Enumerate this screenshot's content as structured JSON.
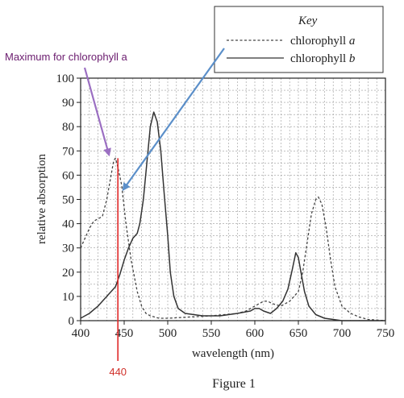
{
  "chart_data": {
    "type": "line",
    "xlabel": "wavelength (nm)",
    "ylabel": "relative absorption",
    "xlim": [
      400,
      750
    ],
    "ylim": [
      0,
      100
    ],
    "x_ticks": [
      400,
      450,
      500,
      550,
      600,
      650,
      700,
      750
    ],
    "y_ticks": [
      0,
      10,
      20,
      30,
      40,
      50,
      60,
      70,
      80,
      90,
      100
    ],
    "grid": true,
    "caption": "Figure 1",
    "legend": {
      "title": "Key",
      "position": "top-right",
      "entries": [
        {
          "prefix": "chlorophyll ",
          "italic": "a",
          "style": "dashed"
        },
        {
          "prefix": "chlorophyll ",
          "italic": "b",
          "style": "solid"
        }
      ]
    },
    "series": [
      {
        "name": "chlorophyll a",
        "style": "dashed",
        "color": "#444444",
        "points": [
          [
            400,
            30
          ],
          [
            405,
            34
          ],
          [
            410,
            38
          ],
          [
            415,
            41
          ],
          [
            420,
            42
          ],
          [
            425,
            43
          ],
          [
            430,
            50
          ],
          [
            435,
            60
          ],
          [
            438,
            66
          ],
          [
            440,
            67
          ],
          [
            443,
            63
          ],
          [
            447,
            56
          ],
          [
            452,
            40
          ],
          [
            458,
            25
          ],
          [
            465,
            12
          ],
          [
            470,
            6
          ],
          [
            475,
            3
          ],
          [
            480,
            2
          ],
          [
            485,
            1.5
          ],
          [
            490,
            1
          ],
          [
            500,
            1
          ],
          [
            550,
            2
          ],
          [
            580,
            3
          ],
          [
            590,
            4
          ],
          [
            600,
            6
          ],
          [
            610,
            8
          ],
          [
            615,
            8
          ],
          [
            620,
            7
          ],
          [
            630,
            6
          ],
          [
            640,
            8
          ],
          [
            650,
            12
          ],
          [
            655,
            20
          ],
          [
            660,
            32
          ],
          [
            665,
            44
          ],
          [
            670,
            50
          ],
          [
            673,
            51
          ],
          [
            677,
            48
          ],
          [
            682,
            38
          ],
          [
            687,
            25
          ],
          [
            692,
            14
          ],
          [
            700,
            6
          ],
          [
            710,
            3
          ],
          [
            720,
            1.5
          ],
          [
            730,
            0.5
          ],
          [
            750,
            0
          ]
        ]
      },
      {
        "name": "chlorophyll b",
        "style": "solid",
        "color": "#333333",
        "points": [
          [
            400,
            1
          ],
          [
            410,
            3
          ],
          [
            420,
            6
          ],
          [
            430,
            10
          ],
          [
            440,
            14
          ],
          [
            445,
            19
          ],
          [
            450,
            25
          ],
          [
            455,
            30
          ],
          [
            460,
            34
          ],
          [
            465,
            36
          ],
          [
            468,
            40
          ],
          [
            472,
            50
          ],
          [
            476,
            65
          ],
          [
            480,
            80
          ],
          [
            484,
            86
          ],
          [
            488,
            82
          ],
          [
            492,
            70
          ],
          [
            496,
            52
          ],
          [
            500,
            35
          ],
          [
            503,
            20
          ],
          [
            507,
            10
          ],
          [
            512,
            5
          ],
          [
            520,
            3
          ],
          [
            540,
            2
          ],
          [
            560,
            2
          ],
          [
            580,
            3
          ],
          [
            595,
            4
          ],
          [
            600,
            5
          ],
          [
            605,
            5
          ],
          [
            610,
            4
          ],
          [
            618,
            3
          ],
          [
            625,
            5
          ],
          [
            632,
            8
          ],
          [
            638,
            13
          ],
          [
            643,
            21
          ],
          [
            647,
            28
          ],
          [
            650,
            26
          ],
          [
            653,
            20
          ],
          [
            657,
            12
          ],
          [
            662,
            6
          ],
          [
            670,
            2.5
          ],
          [
            680,
            1
          ],
          [
            700,
            0
          ],
          [
            750,
            0
          ]
        ]
      }
    ]
  },
  "annotations": {
    "max_label": "Maximum for chlorophyll a",
    "max_x": 440,
    "max_y": 67,
    "marker_label": "440",
    "marker_x": 440,
    "purple_color": "#9b6fc2",
    "red_color": "#e02a2a",
    "blue_color": "#5b8fc9"
  }
}
